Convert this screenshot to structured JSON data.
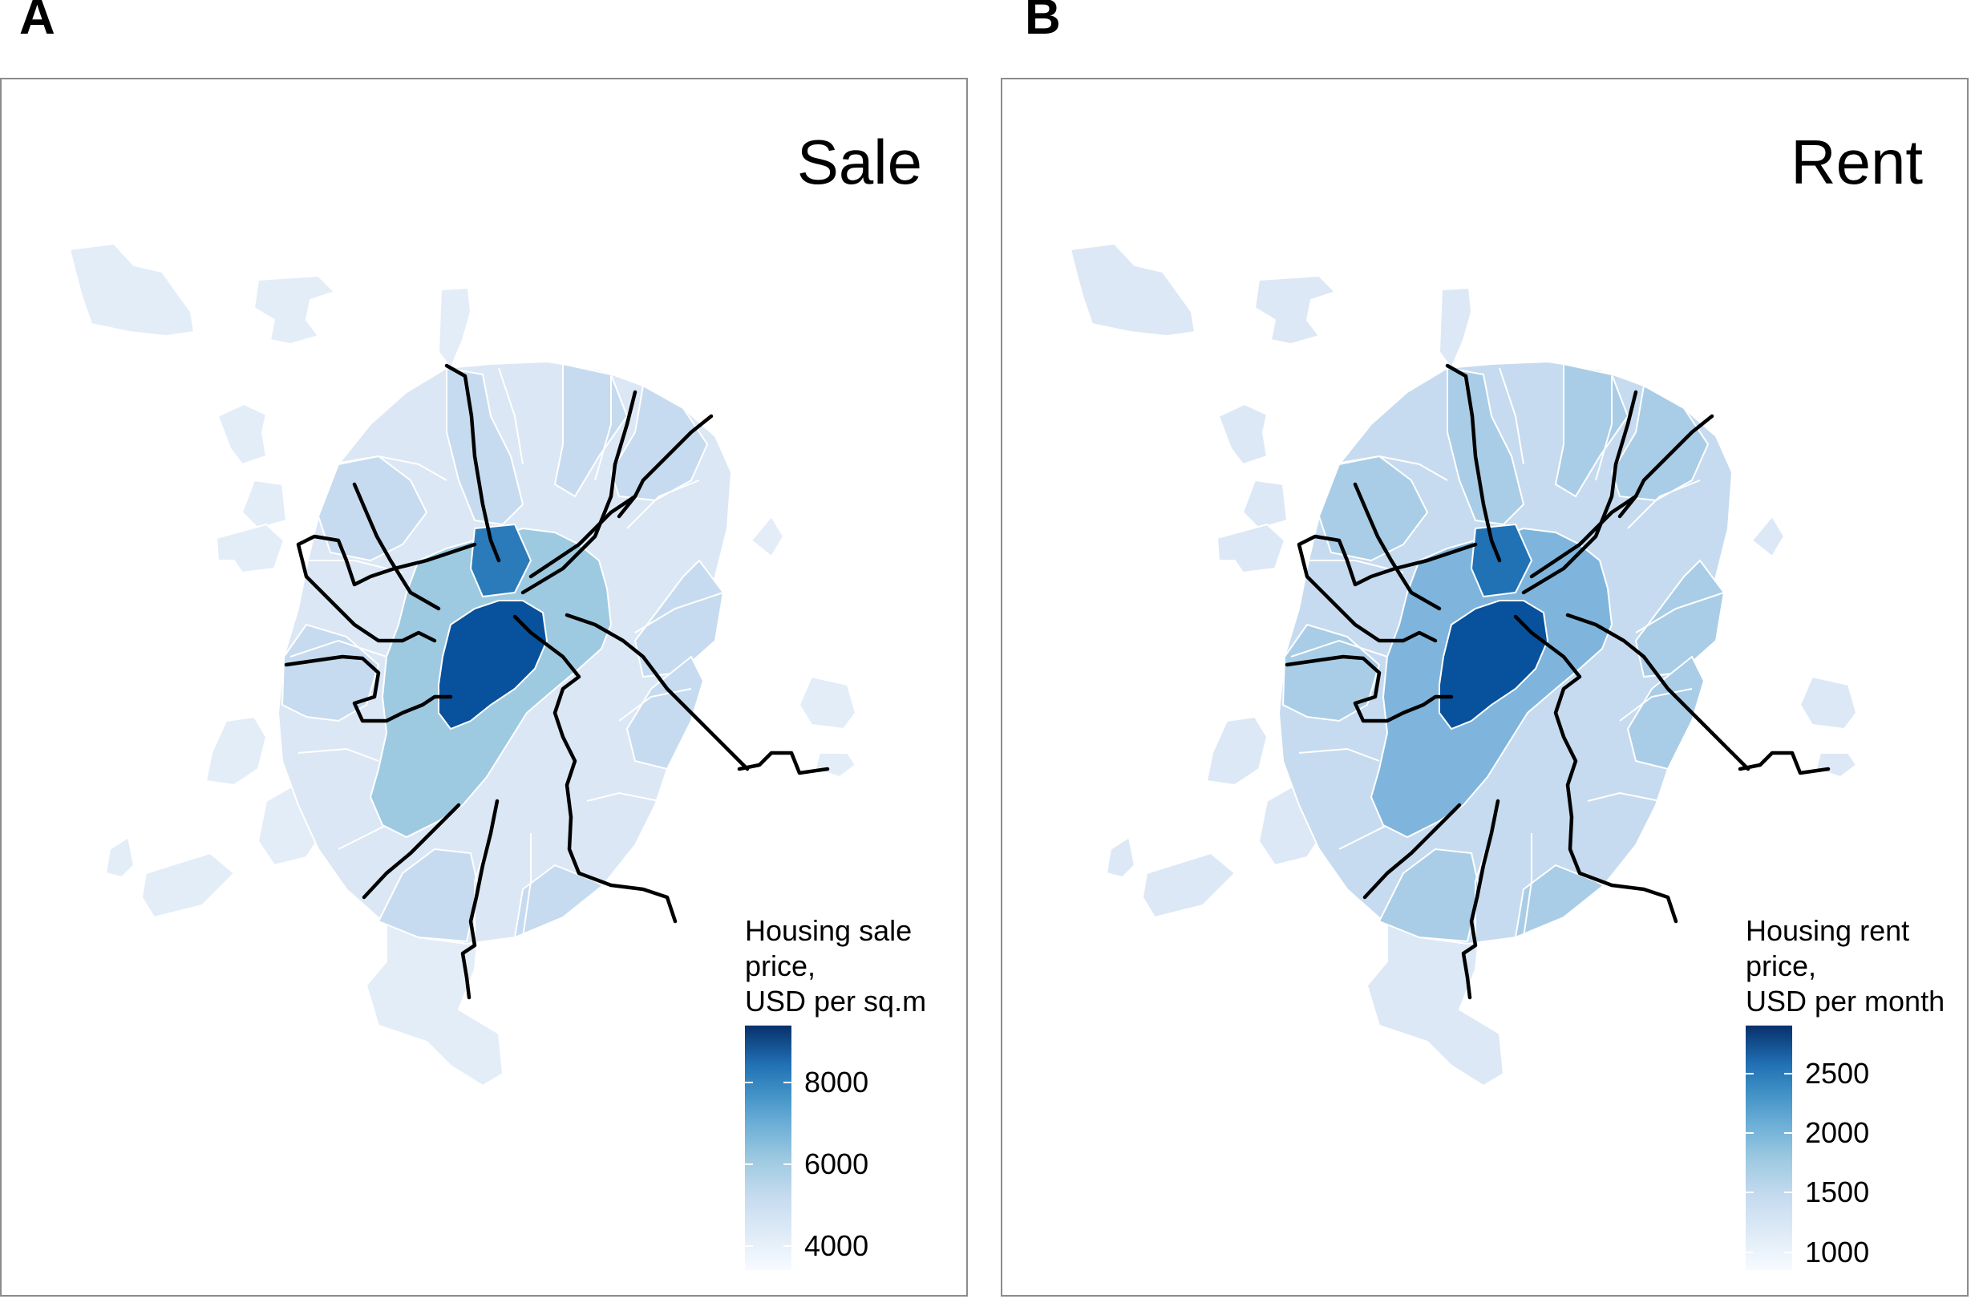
{
  "panels": [
    {
      "letter": "A",
      "title": "Sale",
      "legend": {
        "lines": [
          "Housing sale",
          "price,",
          "USD per sq.m"
        ],
        "min": 3400,
        "max": 9400,
        "ticks": [
          "4000",
          "6000",
          "8000"
        ]
      },
      "colors": {
        "ring": "#9ecae1",
        "mid": "#c6dbef",
        "outer": "#dbe7f4",
        "exclave": "#e3edf8",
        "center": "#2b7bba",
        "core": "#08519c"
      }
    },
    {
      "letter": "B",
      "title": "Rent",
      "legend": {
        "lines": [
          "Housing rent",
          "price,",
          "USD per month"
        ],
        "min": 850,
        "max": 2900,
        "ticks": [
          "1000",
          "1500",
          "2000",
          "2500"
        ]
      },
      "colors": {
        "ring": "#7fb5dc",
        "mid": "#a9cde6",
        "outer": "#c6dbef",
        "exclave": "#dce8f5",
        "center": "#2171b5",
        "core": "#08519c"
      }
    }
  ]
}
